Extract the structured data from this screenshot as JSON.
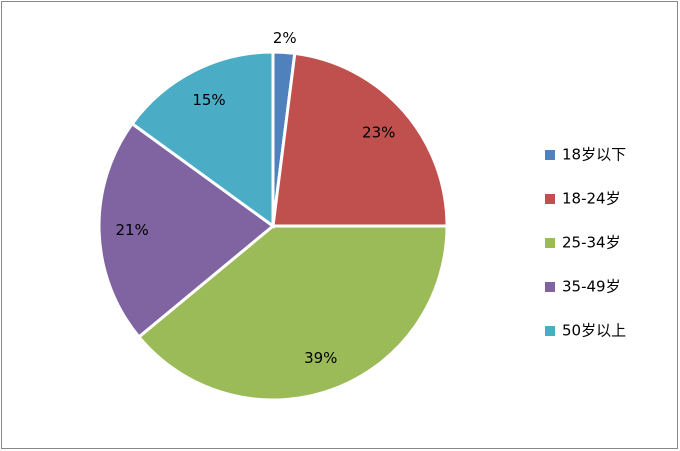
{
  "chart_data": {
    "type": "pie",
    "categories": [
      "18岁以下",
      "18-24岁",
      "25-34岁",
      "35-49岁",
      "50岁以上"
    ],
    "values": [
      2,
      23,
      39,
      21,
      15
    ],
    "value_labels": [
      "2%",
      "23%",
      "39%",
      "21%",
      "15%"
    ],
    "colors": [
      "#4f81bd",
      "#c0504d",
      "#9bbb59",
      "#8064a2",
      "#4bacc6"
    ],
    "legend": "right"
  }
}
